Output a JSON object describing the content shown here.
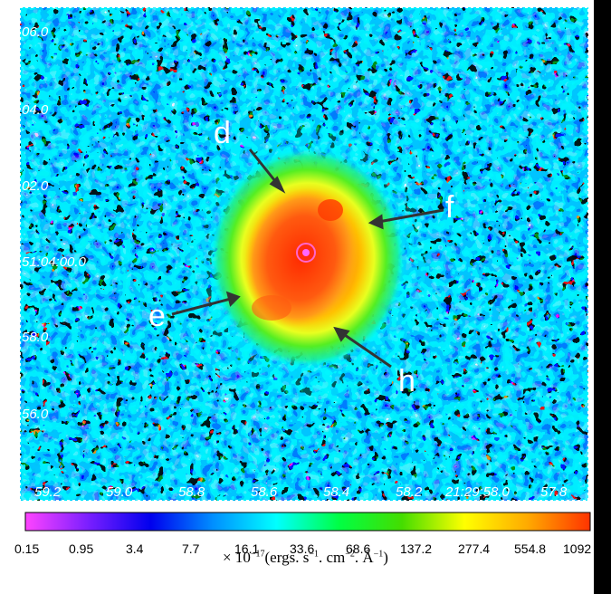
{
  "image": {
    "y_axis_labels": [
      "06.0",
      "04.0",
      "02.0",
      "51:04:00.0",
      "58.0",
      "56.0"
    ],
    "x_axis_labels": [
      "59.2",
      "59.0",
      "58.8",
      "58.6",
      "58.4",
      "58.2",
      "21:29:58.0",
      "57.8"
    ],
    "annotations": [
      {
        "label": "d"
      },
      {
        "label": "f"
      },
      {
        "label": "e"
      },
      {
        "label": "h"
      }
    ]
  },
  "colorbar": {
    "ticks": [
      "0.15",
      "0.95",
      "3.4",
      "7.7",
      "16.1",
      "33.6",
      "68.6",
      "137.2",
      "277.4",
      "554.8",
      "1092"
    ],
    "colors": [
      "#ff44ff",
      "#7a1fff",
      "#0000ee",
      "#0090ff",
      "#00ffff",
      "#00ff44",
      "#44dd00",
      "#ffff00",
      "#ffaa00",
      "#ff3300"
    ],
    "units_prefix": "× 10",
    "units_exp": "−17",
    "units_main": "(ergs. s",
    "units_s_exp": "−1",
    "units_cm": ". cm",
    "units_cm_exp": "−2",
    "units_ang": ". Å",
    "units_ang_exp": "−1",
    "units_close": ")"
  }
}
